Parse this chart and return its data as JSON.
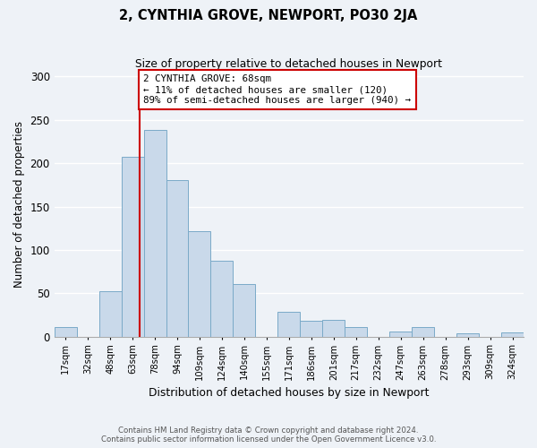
{
  "title": "2, CYNTHIA GROVE, NEWPORT, PO30 2JA",
  "subtitle": "Size of property relative to detached houses in Newport",
  "xlabel": "Distribution of detached houses by size in Newport",
  "ylabel": "Number of detached properties",
  "bar_labels": [
    "17sqm",
    "32sqm",
    "48sqm",
    "63sqm",
    "78sqm",
    "94sqm",
    "109sqm",
    "124sqm",
    "140sqm",
    "155sqm",
    "171sqm",
    "186sqm",
    "201sqm",
    "217sqm",
    "232sqm",
    "247sqm",
    "263sqm",
    "278sqm",
    "293sqm",
    "309sqm",
    "324sqm"
  ],
  "bar_values": [
    11,
    0,
    52,
    207,
    238,
    181,
    122,
    88,
    61,
    0,
    29,
    18,
    19,
    11,
    0,
    6,
    11,
    0,
    4,
    0,
    5
  ],
  "bar_color": "#c9d9ea",
  "bar_edge_color": "#7aaac8",
  "ylim": [
    0,
    305
  ],
  "yticks": [
    0,
    50,
    100,
    150,
    200,
    250,
    300
  ],
  "vline_x_bin": 3,
  "vline_color": "#cc0000",
  "annotation_title": "2 CYNTHIA GROVE: 68sqm",
  "annotation_line1": "← 11% of detached houses are smaller (120)",
  "annotation_line2": "89% of semi-detached houses are larger (940) →",
  "annotation_box_color": "#ffffff",
  "annotation_box_edge": "#cc0000",
  "footer_line1": "Contains HM Land Registry data © Crown copyright and database right 2024.",
  "footer_line2": "Contains public sector information licensed under the Open Government Licence v3.0.",
  "background_color": "#eef2f7",
  "plot_bg_color": "#eef2f7",
  "grid_color": "#ffffff",
  "bin_width": 1
}
